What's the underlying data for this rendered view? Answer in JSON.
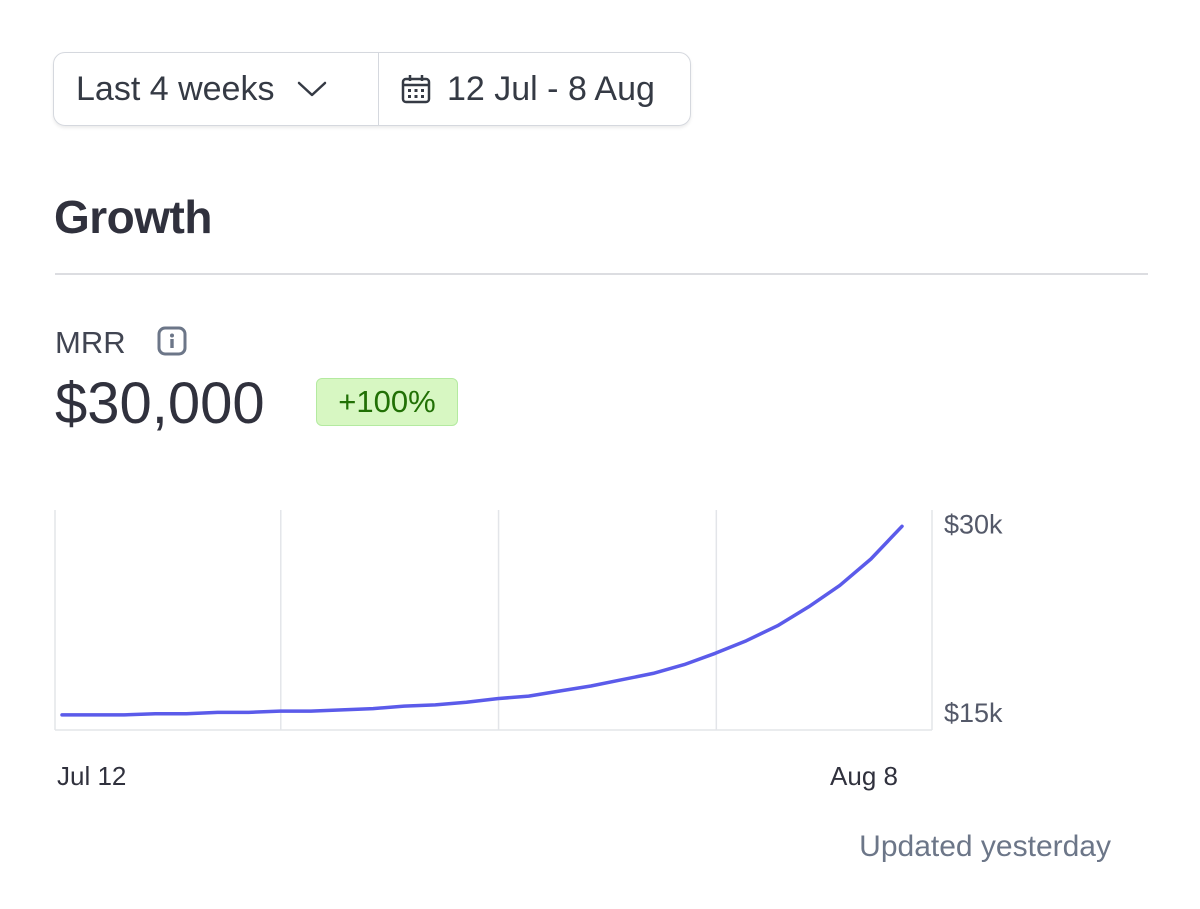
{
  "controls": {
    "range": "Last 4 weeks",
    "dates": "12 Jul - 8 Aug"
  },
  "section": {
    "title": "Growth"
  },
  "metric": {
    "label": "MRR",
    "value": "$30,000",
    "change": "+100%"
  },
  "footer": "Updated yesterday",
  "chart_data": {
    "type": "line",
    "categories": [
      "Jul 12",
      null,
      null,
      null,
      null,
      null,
      null,
      null,
      null,
      null,
      null,
      null,
      null,
      null,
      null,
      null,
      null,
      null,
      null,
      null,
      null,
      null,
      null,
      null,
      null,
      null,
      null,
      "Aug 8"
    ],
    "series": [
      {
        "name": "MRR",
        "color": "#5b5bea",
        "values": [
          15000,
          15000,
          15000,
          15100,
          15100,
          15200,
          15200,
          15300,
          15300,
          15400,
          15500,
          15700,
          15800,
          16000,
          16300,
          16500,
          16900,
          17300,
          17800,
          18300,
          19000,
          19900,
          20900,
          22100,
          23600,
          25300,
          27400,
          30000
        ]
      }
    ],
    "ylim": [
      13800,
      31300
    ],
    "yticks": [
      {
        "value": 15000,
        "label": "$15k"
      },
      {
        "value": 30000,
        "label": "$30k"
      }
    ],
    "grid": true
  }
}
